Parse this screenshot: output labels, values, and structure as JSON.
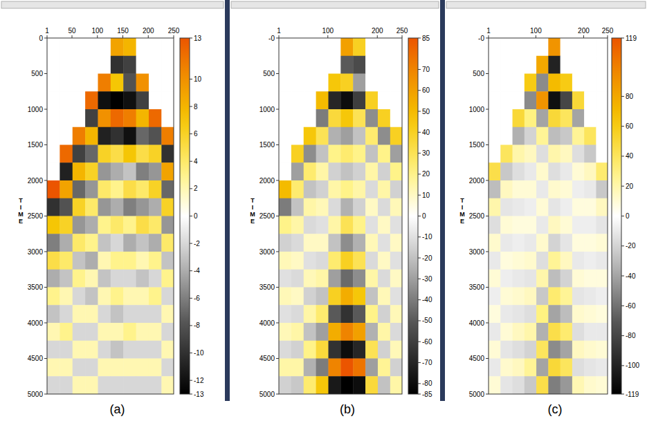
{
  "chart_data": [
    {
      "type": "heatmap",
      "title": "(a)",
      "ylabel": "TIME",
      "xlim": [
        1,
        250
      ],
      "xticks": [
        1,
        50,
        100,
        150,
        200,
        250
      ],
      "ylim": [
        0,
        5000
      ],
      "yticks": [
        0,
        500,
        1000,
        1500,
        2000,
        2500,
        3000,
        3500,
        4000,
        4500,
        5000
      ],
      "x_edges": [
        1,
        26,
        51,
        76,
        101,
        126,
        151,
        176,
        201,
        226,
        250
      ],
      "y_edges": [
        0,
        250,
        500,
        750,
        1000,
        1250,
        1500,
        1750,
        2000,
        2250,
        2500,
        2750,
        3000,
        3250,
        3500,
        3750,
        4000,
        4250,
        4500,
        4750,
        5000
      ],
      "cells": [
        [
          0,
          0,
          0,
          0,
          0,
          9,
          8,
          0,
          0,
          0
        ],
        [
          0,
          0,
          0,
          0,
          0,
          -10,
          -9,
          0,
          0,
          0
        ],
        [
          0,
          0,
          0,
          0,
          11,
          7,
          -8,
          10,
          0,
          0
        ],
        [
          0,
          0,
          0,
          12,
          -12,
          -13,
          -12,
          -9,
          0,
          0
        ],
        [
          0,
          0,
          0,
          -9,
          10,
          12,
          11,
          8,
          12,
          0
        ],
        [
          0,
          0,
          11,
          8,
          -11,
          -10,
          -12,
          -7,
          -8,
          11
        ],
        [
          0,
          12,
          -9,
          -7,
          6,
          5,
          7,
          5,
          6,
          -10
        ],
        [
          0,
          -11,
          8,
          6,
          -5,
          -4,
          -3,
          -6,
          -5,
          9
        ],
        [
          13,
          9,
          -7,
          -5,
          4,
          3,
          5,
          4,
          6,
          -7
        ],
        [
          -10,
          -8,
          6,
          4,
          -5,
          -4,
          -6,
          -5,
          -4,
          6
        ],
        [
          7,
          6,
          -5,
          -4,
          3,
          4,
          3,
          5,
          4,
          -5
        ],
        [
          -6,
          -4,
          4,
          3,
          -3,
          -2,
          -4,
          -3,
          -4,
          4
        ],
        [
          5,
          4,
          -3,
          -4,
          2,
          3,
          3,
          2,
          3,
          -3
        ],
        [
          -4,
          -3,
          3,
          2,
          -3,
          -2,
          -2,
          -3,
          -2,
          3
        ],
        [
          3,
          2,
          -2,
          -3,
          2,
          3,
          2,
          2,
          3,
          -2
        ],
        [
          -3,
          -2,
          2,
          2,
          -2,
          -3,
          -2,
          -2,
          -2,
          2
        ],
        [
          2,
          3,
          -2,
          -2,
          2,
          2,
          3,
          2,
          2,
          -2
        ],
        [
          -2,
          -2,
          2,
          2,
          -2,
          -3,
          -2,
          -2,
          -2,
          2
        ],
        [
          2,
          2,
          -2,
          -2,
          2,
          2,
          2,
          2,
          2,
          -2
        ],
        [
          -2,
          -2,
          2,
          2,
          -2,
          -2,
          -2,
          -2,
          -2,
          2
        ]
      ],
      "cbar_lim": [
        -13,
        13
      ],
      "cbar_ticks": [
        13,
        10,
        8,
        6,
        4,
        2,
        0,
        -2,
        -4,
        -6,
        -8,
        -10,
        -12,
        -13
      ]
    },
    {
      "type": "heatmap",
      "title": "(b)",
      "ylabel": "TIME",
      "xlim": [
        1,
        250
      ],
      "xticks": [
        1,
        100,
        200,
        250
      ],
      "ylim": [
        0,
        5000
      ],
      "yticks": [
        {
          "value": 0,
          "label": "-0"
        },
        500,
        1000,
        1500,
        2000,
        2500,
        3000,
        3500,
        4000,
        4500,
        5000
      ],
      "x_edges": [
        1,
        26,
        51,
        76,
        101,
        126,
        151,
        176,
        201,
        226,
        250
      ],
      "y_edges": [
        0,
        250,
        500,
        750,
        1000,
        1250,
        1500,
        1750,
        2000,
        2250,
        2500,
        2750,
        3000,
        3250,
        3500,
        3750,
        4000,
        4250,
        4500,
        4750,
        5000
      ],
      "cells": [
        [
          0,
          0,
          0,
          0,
          0,
          60,
          40,
          0,
          0,
          0
        ],
        [
          0,
          0,
          0,
          0,
          0,
          -50,
          -55,
          0,
          0,
          0
        ],
        [
          0,
          0,
          0,
          0,
          45,
          40,
          -30,
          0,
          0,
          0
        ],
        [
          0,
          0,
          0,
          50,
          -70,
          -80,
          -60,
          40,
          0,
          0
        ],
        [
          0,
          0,
          0,
          -40,
          35,
          45,
          30,
          -35,
          40,
          0
        ],
        [
          0,
          0,
          45,
          30,
          -25,
          -30,
          -20,
          25,
          -35,
          40
        ],
        [
          0,
          40,
          -35,
          -20,
          20,
          25,
          20,
          -20,
          20,
          -30
        ],
        [
          0,
          -30,
          25,
          15,
          -15,
          -20,
          -15,
          15,
          -15,
          20
        ],
        [
          50,
          25,
          -20,
          -15,
          15,
          20,
          15,
          -12,
          15,
          -15
        ],
        [
          -40,
          -20,
          15,
          12,
          -12,
          -25,
          -15,
          10,
          -12,
          12
        ],
        [
          20,
          15,
          -12,
          -10,
          15,
          30,
          20,
          -10,
          10,
          -10
        ],
        [
          -15,
          -12,
          10,
          10,
          -20,
          -35,
          -25,
          12,
          -10,
          10
        ],
        [
          12,
          10,
          -10,
          -12,
          25,
          40,
          30,
          -12,
          10,
          -10
        ],
        [
          -10,
          -12,
          12,
          15,
          -30,
          -45,
          -35,
          15,
          -12,
          10
        ],
        [
          12,
          10,
          -15,
          -20,
          40,
          55,
          45,
          -20,
          12,
          -10
        ],
        [
          -10,
          -12,
          15,
          25,
          -50,
          -65,
          -50,
          20,
          -15,
          12
        ],
        [
          12,
          15,
          -20,
          -30,
          55,
          70,
          60,
          -25,
          15,
          -12
        ],
        [
          -12,
          -15,
          20,
          35,
          -65,
          -80,
          -70,
          30,
          -15,
          12
        ],
        [
          15,
          15,
          -25,
          -40,
          70,
          85,
          75,
          -30,
          18,
          -15
        ],
        [
          -15,
          -18,
          25,
          45,
          -75,
          -85,
          -80,
          35,
          -20,
          15
        ]
      ],
      "cbar_lim": [
        -85,
        85
      ],
      "cbar_ticks": [
        85,
        70,
        60,
        50,
        40,
        30,
        20,
        10,
        0,
        -10,
        -20,
        -30,
        -40,
        -50,
        -60,
        -70,
        -80,
        -85
      ]
    },
    {
      "type": "heatmap",
      "title": "(c)",
      "ylabel": "TIME",
      "xlim": [
        1,
        250
      ],
      "xticks": [
        1,
        100,
        200,
        250
      ],
      "ylim": [
        0,
        5000
      ],
      "yticks": [
        {
          "value": 0,
          "label": "-0"
        },
        500,
        1000,
        1500,
        2000,
        2500,
        3000,
        3500,
        4000,
        4500,
        5000
      ],
      "x_edges": [
        1,
        26,
        51,
        76,
        101,
        126,
        151,
        176,
        201,
        226,
        250
      ],
      "y_edges": [
        0,
        250,
        500,
        750,
        1000,
        1250,
        1500,
        1750,
        2000,
        2250,
        2500,
        2750,
        3000,
        3250,
        3500,
        3750,
        4000,
        4250,
        4500,
        4750,
        5000
      ],
      "cells": [
        [
          0,
          0,
          0,
          0,
          0,
          90,
          0,
          0,
          0,
          0
        ],
        [
          0,
          0,
          0,
          0,
          80,
          -100,
          0,
          0,
          0,
          0
        ],
        [
          0,
          0,
          0,
          60,
          -50,
          70,
          60,
          0,
          0,
          0
        ],
        [
          0,
          0,
          0,
          -50,
          90,
          -110,
          -80,
          50,
          0,
          0
        ],
        [
          0,
          0,
          50,
          30,
          -40,
          50,
          40,
          -40,
          0,
          0
        ],
        [
          0,
          0,
          -35,
          -20,
          25,
          -30,
          -25,
          25,
          40,
          0
        ],
        [
          0,
          40,
          20,
          15,
          -15,
          20,
          15,
          -15,
          -25,
          0
        ],
        [
          45,
          -25,
          -15,
          -10,
          12,
          -15,
          -10,
          10,
          15,
          35
        ],
        [
          -30,
          15,
          10,
          10,
          -10,
          12,
          10,
          -8,
          -10,
          -25
        ],
        [
          20,
          -12,
          -10,
          -8,
          10,
          -12,
          -8,
          8,
          8,
          15
        ],
        [
          -15,
          10,
          8,
          8,
          -10,
          15,
          10,
          -8,
          -8,
          -12
        ],
        [
          12,
          -10,
          -8,
          -10,
          12,
          -20,
          -12,
          8,
          8,
          10
        ],
        [
          -10,
          8,
          10,
          12,
          -15,
          25,
          15,
          -10,
          -8,
          -10
        ],
        [
          10,
          -8,
          -10,
          -12,
          20,
          -30,
          -20,
          10,
          8,
          8
        ],
        [
          -8,
          10,
          12,
          15,
          -25,
          35,
          25,
          -12,
          -10,
          -8
        ],
        [
          8,
          -10,
          -12,
          -15,
          30,
          -40,
          -30,
          12,
          10,
          8
        ],
        [
          -10,
          10,
          15,
          20,
          -35,
          45,
          35,
          -15,
          -10,
          -10
        ],
        [
          10,
          -12,
          -15,
          -20,
          40,
          -50,
          -40,
          15,
          12,
          10
        ],
        [
          -10,
          12,
          15,
          25,
          -40,
          50,
          40,
          -15,
          -12,
          -10
        ],
        [
          10,
          -12,
          -15,
          -25,
          45,
          -55,
          -45,
          18,
          12,
          10
        ]
      ],
      "cbar_lim": [
        -119,
        119
      ],
      "cbar_ticks": [
        119,
        80,
        60,
        40,
        20,
        0,
        -20,
        -40,
        -60,
        -80,
        -100,
        -119
      ]
    }
  ]
}
